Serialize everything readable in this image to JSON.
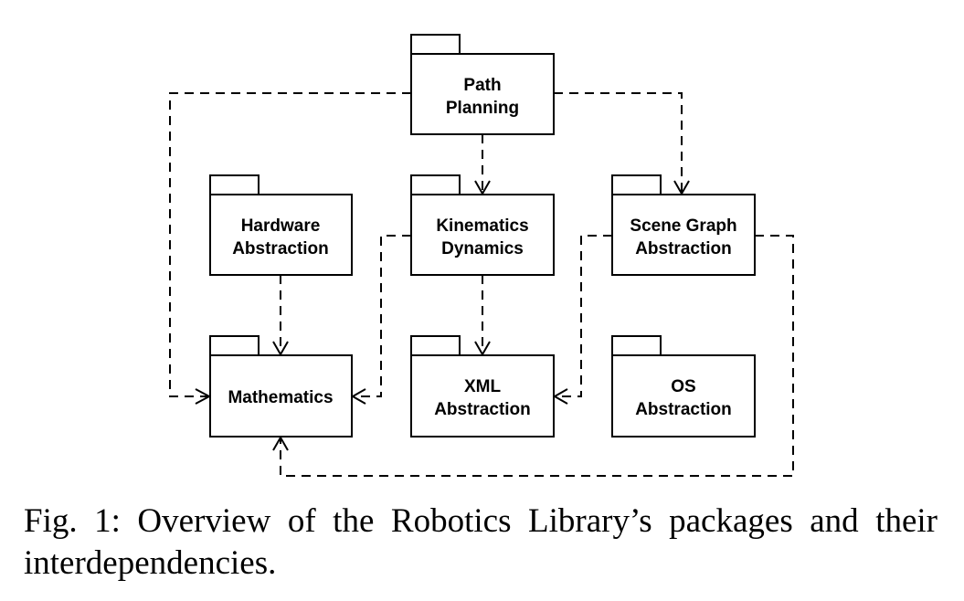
{
  "packages": {
    "path_planning": [
      "Path",
      "Planning"
    ],
    "hardware_abstraction": [
      "Hardware",
      "Abstraction"
    ],
    "kinematics_dynamics": [
      "Kinematics",
      "Dynamics"
    ],
    "scene_graph_abstraction": [
      "Scene Graph",
      "Abstraction"
    ],
    "mathematics": [
      "Mathematics"
    ],
    "xml_abstraction": [
      "XML",
      "Abstraction"
    ],
    "os_abstraction": [
      "OS",
      "Abstraction"
    ]
  },
  "caption": "Fig. 1: Overview of the Robotics Library’s packages and their interdependencies."
}
